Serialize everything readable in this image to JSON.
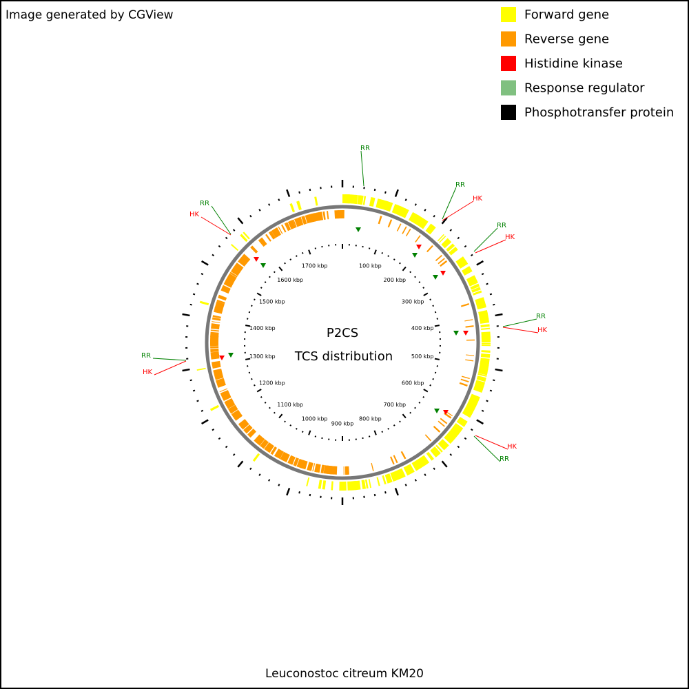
{
  "header": {
    "credit": "Image generated by CGView"
  },
  "legend": {
    "items": [
      {
        "label": "Forward gene",
        "color": "#ffff00"
      },
      {
        "label": "Reverse gene",
        "color": "#ff9900"
      },
      {
        "label": "Histidine kinase",
        "color": "#ff0000"
      },
      {
        "label": "Response regulator",
        "color": "#80c080"
      },
      {
        "label": "Phosphotransfer protein",
        "color": "#000000"
      }
    ]
  },
  "center": {
    "title": "P2CS",
    "subtitle": "TCS distribution"
  },
  "ruler": {
    "labels": [
      "100 kbp",
      "200 kbp",
      "300 kbp",
      "400 kbp",
      "500 kbp",
      "600 kbp",
      "700 kbp",
      "800 kbp",
      "900 kbp",
      "1000 kbp",
      "1100 kbp",
      "1200 kbp",
      "1300 kbp",
      "1400 kbp",
      "1500 kbp",
      "1600 kbp",
      "1700 kbp"
    ]
  },
  "tcs_labels": [
    "RR",
    "RR",
    "HK",
    "RR",
    "HK",
    "RR",
    "HK",
    "HK",
    "RR",
    "RR",
    "HK",
    "RR",
    "HK"
  ],
  "footer": {
    "organism": "Leuconostoc citreum KM20"
  }
}
